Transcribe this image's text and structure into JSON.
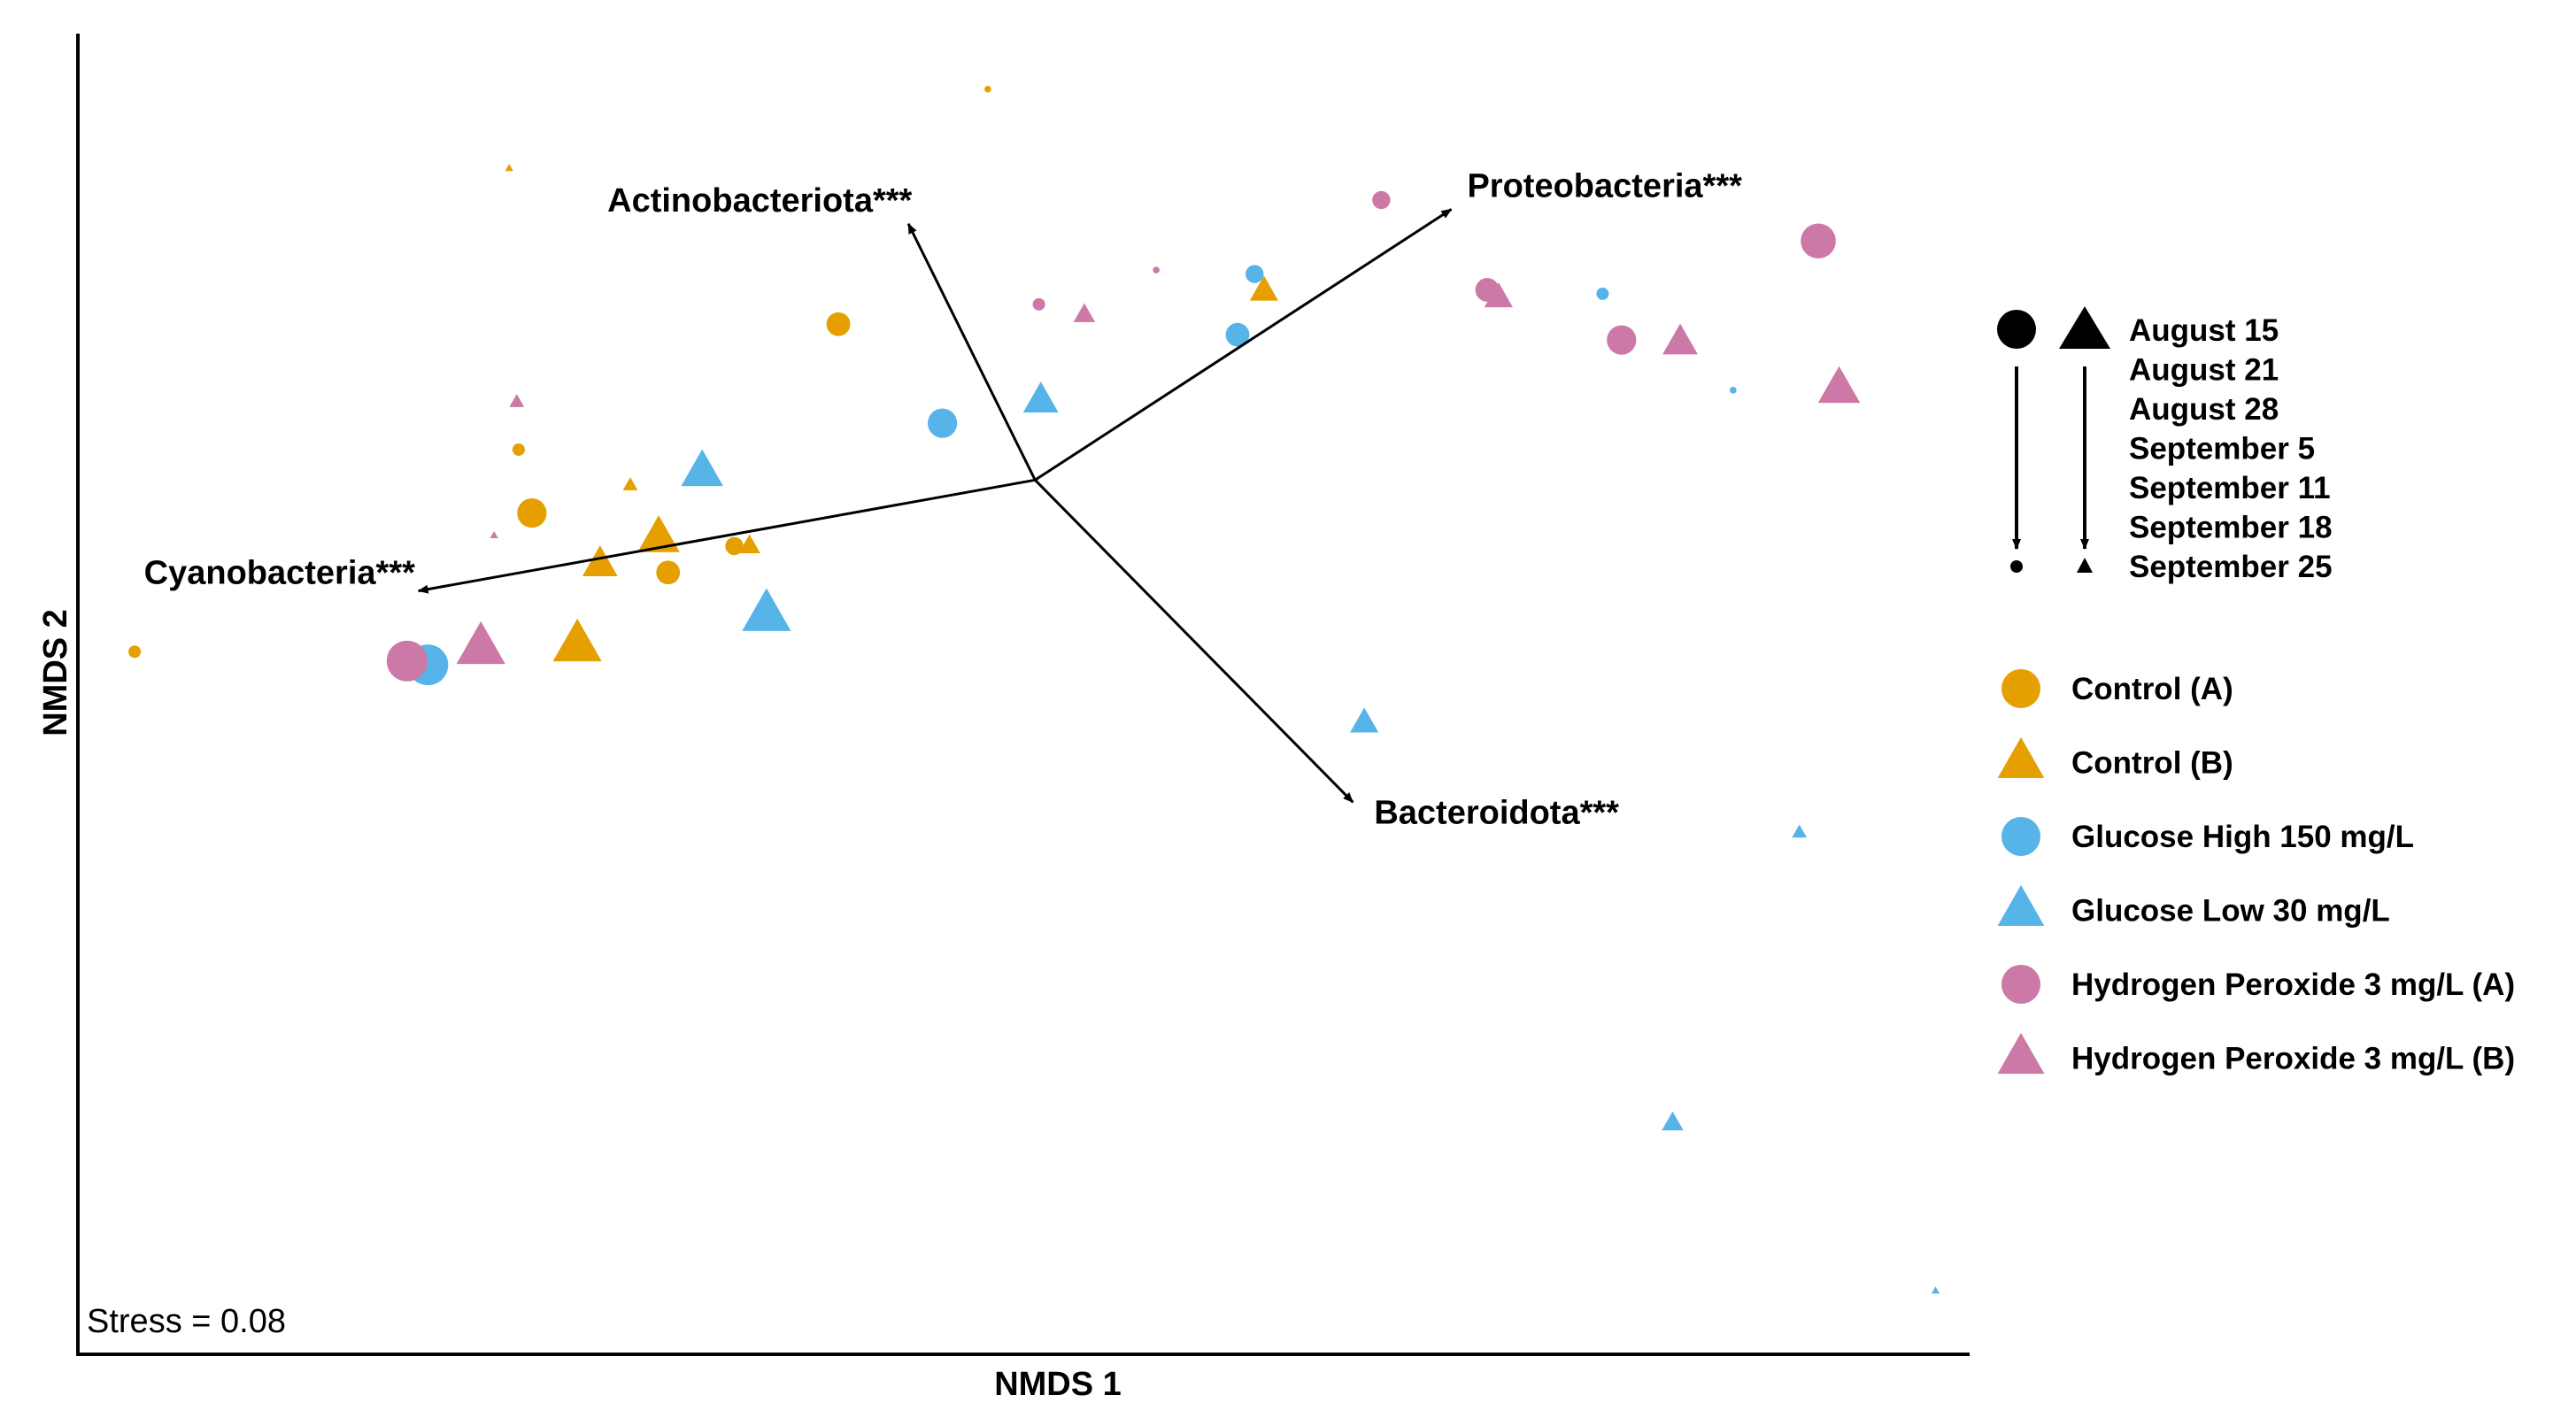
{
  "chart_data": {
    "type": "scatter",
    "title": "",
    "xlabel": "NMDS 1",
    "ylabel": "NMDS 2",
    "xlim": [
      0,
      100
    ],
    "ylim": [
      0,
      100
    ],
    "grid": false,
    "stress_text": "Stress = 0.08",
    "colors": {
      "orange": "#E69F00",
      "blue": "#56B4E9",
      "pink": "#CC79A7",
      "black": "#000000"
    },
    "date_legend": {
      "dates": [
        "August 15",
        "August 21",
        "August 28",
        "September 5",
        "September 11",
        "September 18",
        "September 25"
      ],
      "note": "symbol size decreases from first to last date"
    },
    "series": [
      {
        "name": "Control (A)",
        "shape": "circle",
        "color": "#E69F00",
        "points": [
          {
            "x": 24.0,
            "y": 63.7,
            "date": "August 28"
          },
          {
            "x": 40.2,
            "y": 78.0,
            "date": "September 5"
          },
          {
            "x": 34.7,
            "y": 61.2,
            "date": "September 11"
          },
          {
            "x": 23.3,
            "y": 68.5,
            "date": "September 18"
          },
          {
            "x": 48.1,
            "y": 95.8,
            "date": "September 25"
          },
          {
            "x": 3.0,
            "y": 53.2,
            "date": "September 18"
          },
          {
            "x": 31.2,
            "y": 59.2,
            "date": "September 5"
          }
        ]
      },
      {
        "name": "Control (B)",
        "shape": "triangle",
        "color": "#E69F00",
        "points": [
          {
            "x": 26.4,
            "y": 53.7,
            "date": "August 15"
          },
          {
            "x": 30.7,
            "y": 61.8,
            "date": "August 21"
          },
          {
            "x": 27.6,
            "y": 59.8,
            "date": "August 28"
          },
          {
            "x": 62.7,
            "y": 80.5,
            "date": "September 5"
          },
          {
            "x": 35.5,
            "y": 61.2,
            "date": "September 11"
          },
          {
            "x": 29.2,
            "y": 65.8,
            "date": "September 18"
          },
          {
            "x": 22.8,
            "y": 89.8,
            "date": "September 25"
          }
        ]
      },
      {
        "name": "Glucose High 150 mg/L",
        "shape": "circle",
        "color": "#56B4E9",
        "points": [
          {
            "x": 18.5,
            "y": 52.2,
            "date": "August 15"
          },
          {
            "x": 45.7,
            "y": 70.5,
            "date": "August 28"
          },
          {
            "x": 61.3,
            "y": 77.2,
            "date": "September 5"
          },
          {
            "x": 62.2,
            "y": 81.8,
            "date": "September 11"
          },
          {
            "x": 80.6,
            "y": 80.3,
            "date": "September 18"
          },
          {
            "x": 87.5,
            "y": 73.0,
            "date": "September 25"
          }
        ]
      },
      {
        "name": "Glucose Low 30 mg/L",
        "shape": "triangle",
        "color": "#56B4E9",
        "points": [
          {
            "x": 36.4,
            "y": 56.0,
            "date": "August 15"
          },
          {
            "x": 33.0,
            "y": 66.8,
            "date": "August 21"
          },
          {
            "x": 50.9,
            "y": 72.2,
            "date": "August 28"
          },
          {
            "x": 68.0,
            "y": 47.8,
            "date": "September 5"
          },
          {
            "x": 84.3,
            "y": 17.5,
            "date": "September 11"
          },
          {
            "x": 91.0,
            "y": 39.5,
            "date": "September 18"
          },
          {
            "x": 98.2,
            "y": 4.8,
            "date": "September 25"
          }
        ]
      },
      {
        "name": "Hydrogen Peroxide 3 mg/L (A)",
        "shape": "circle",
        "color": "#CC79A7",
        "points": [
          {
            "x": 17.4,
            "y": 52.5,
            "date": "August 15"
          },
          {
            "x": 92.0,
            "y": 84.3,
            "date": "August 21"
          },
          {
            "x": 81.6,
            "y": 76.8,
            "date": "August 28"
          },
          {
            "x": 74.5,
            "y": 80.6,
            "date": "September 5"
          },
          {
            "x": 68.9,
            "y": 87.4,
            "date": "September 11"
          },
          {
            "x": 50.8,
            "y": 79.5,
            "date": "September 18"
          },
          {
            "x": 57.0,
            "y": 82.1,
            "date": "September 25"
          }
        ]
      },
      {
        "name": "Hydrogen Peroxide 3 mg/L (B)",
        "shape": "triangle",
        "color": "#CC79A7",
        "points": [
          {
            "x": 21.3,
            "y": 53.5,
            "date": "August 15"
          },
          {
            "x": 93.1,
            "y": 73.1,
            "date": "August 21"
          },
          {
            "x": 84.7,
            "y": 76.6,
            "date": "August 28"
          },
          {
            "x": 75.1,
            "y": 80.0,
            "date": "September 5"
          },
          {
            "x": 53.2,
            "y": 78.7,
            "date": "September 11"
          },
          {
            "x": 23.2,
            "y": 72.1,
            "date": "September 18"
          },
          {
            "x": 22.0,
            "y": 62.0,
            "date": "September 25"
          }
        ]
      }
    ],
    "vectors": [
      {
        "label": "Actinobacteriota***",
        "x": 43.9,
        "y": 85.6
      },
      {
        "label": "Proteobacteria***",
        "x": 72.6,
        "y": 86.7
      },
      {
        "label": "Cyanobacteria***",
        "x": 18.0,
        "y": 57.8
      },
      {
        "label": "Bacteroidota***",
        "x": 67.4,
        "y": 41.8
      }
    ],
    "vector_origin": {
      "x": 50.6,
      "y": 66.2
    }
  }
}
